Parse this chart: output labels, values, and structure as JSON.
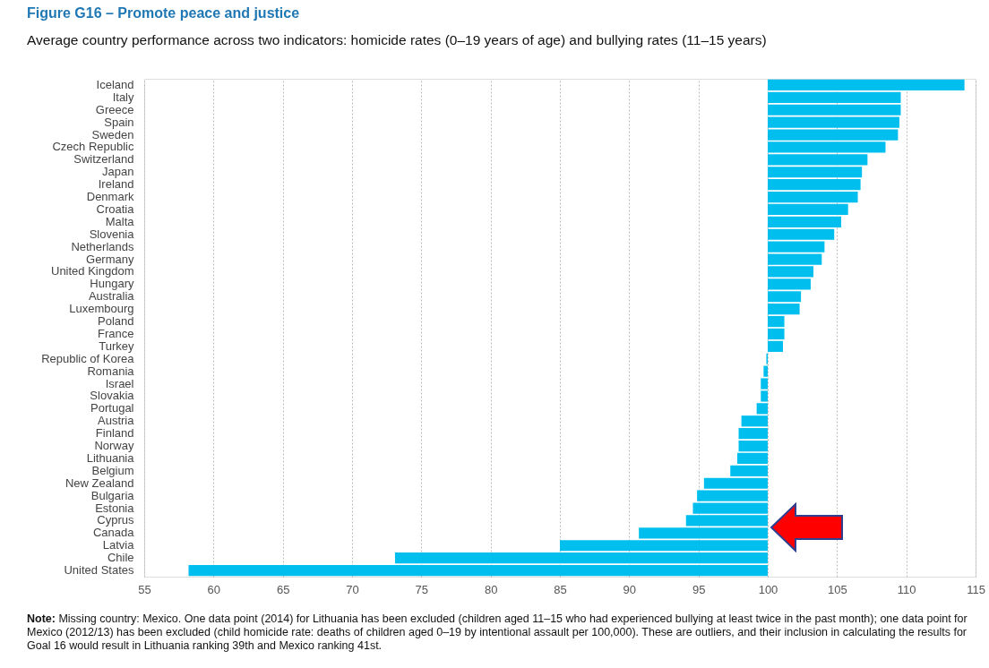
{
  "chart_data": {
    "type": "bar",
    "orientation": "horizontal",
    "title": "Figure G16 – Promote peace and justice",
    "subtitle": "Average country performance across two indicators: homicide rates (0–19 years of age) and bullying rates (11–15 years)",
    "categories": [
      "Iceland",
      "Italy",
      "Greece",
      "Spain",
      "Sweden",
      "Czech Republic",
      "Switzerland",
      "Japan",
      "Ireland",
      "Denmark",
      "Croatia",
      "Malta",
      "Slovenia",
      "Netherlands",
      "Germany",
      "United Kingdom",
      "Hungary",
      "Australia",
      "Luxembourg",
      "Poland",
      "France",
      "Turkey",
      "Republic of Korea",
      "Romania",
      "Israel",
      "Slovakia",
      "Portugal",
      "Austria",
      "Finland",
      "Norway",
      "Lithuania",
      "Belgium",
      "New Zealand",
      "Bulgaria",
      "Estonia",
      "Cyprus",
      "Canada",
      "Latvia",
      "Chile",
      "United States"
    ],
    "base": [
      100,
      100,
      100,
      100,
      100,
      100,
      100,
      100,
      100,
      100,
      100,
      100,
      100,
      100,
      100,
      100,
      100,
      100,
      100,
      100,
      100,
      100,
      100,
      100,
      100,
      100,
      100,
      100,
      100,
      100,
      100,
      100,
      100,
      100,
      100,
      100,
      100,
      100,
      100,
      100
    ],
    "values": [
      14.2,
      9.6,
      9.6,
      9.5,
      9.4,
      8.5,
      7.2,
      6.8,
      6.7,
      6.5,
      5.8,
      5.3,
      4.8,
      4.1,
      3.9,
      3.3,
      3.1,
      2.4,
      2.3,
      1.2,
      1.2,
      1.1,
      -0.1,
      -0.3,
      -0.5,
      -0.5,
      -0.8,
      -1.9,
      -2.1,
      -2.1,
      -2.2,
      -2.7,
      -4.6,
      -5.1,
      -5.4,
      -5.9,
      -9.3,
      -15.0,
      -26.9,
      -41.8
    ],
    "color": "#00bfef",
    "xlim": [
      55,
      115
    ],
    "xticks": [
      55,
      60,
      65,
      70,
      75,
      80,
      85,
      90,
      95,
      100,
      105,
      110,
      115
    ],
    "grid": "x",
    "annotations": [
      "Note: Missing country: Mexico. One data point (2014) for Lithuania has been excluded (children aged 11–15 who had experienced bullying at least twice in the past month); one data point for Mexico (2012/13) has been excluded (child homicide rate: deaths of children aged 0–19 by intentional assault per 100,000). These are outliers, and their inclusion in calculating the results for Goal 16 would result in Lithuania ranking 39th and Mexico ranking 41st."
    ]
  }
}
